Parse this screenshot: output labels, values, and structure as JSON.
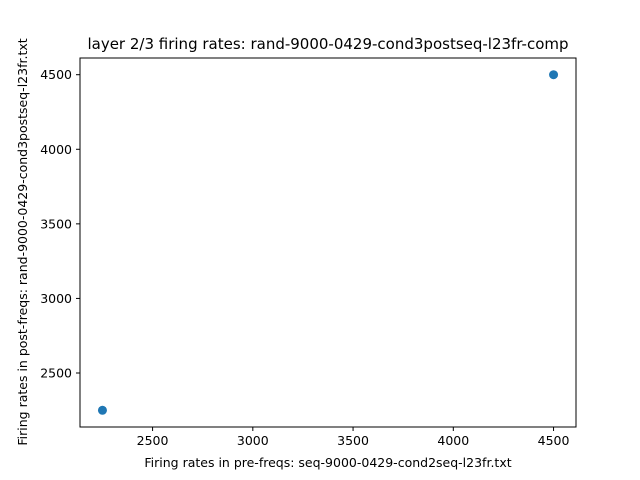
{
  "chart_data": {
    "type": "scatter",
    "title": "layer 2/3 firing rates: rand-9000-0429-cond3postseq-l23fr-comp",
    "xlabel": "Firing rates in pre-freqs: seq-9000-0429-cond2seq-l23fr.txt",
    "ylabel": "Firing rates in post-freqs: rand-9000-0429-cond3postseq-l23fr.txt",
    "xlim": [
      2138,
      4612
    ],
    "ylim": [
      2138,
      4612
    ],
    "xticks": [
      2500,
      3000,
      3500,
      4000,
      4500
    ],
    "yticks": [
      2500,
      3000,
      3500,
      4000,
      4500
    ],
    "xtick_labels": [
      "2500",
      "3000",
      "3500",
      "4000",
      "4500"
    ],
    "ytick_labels": [
      "2500",
      "3000",
      "3500",
      "4000",
      "4500"
    ],
    "grid": false,
    "points": [
      {
        "x": 2250,
        "y": 2250
      },
      {
        "x": 4500,
        "y": 4500
      }
    ],
    "marker_color": "#1f77b4"
  }
}
